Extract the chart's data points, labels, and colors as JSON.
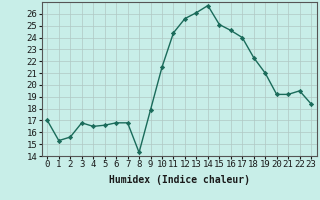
{
  "x": [
    0,
    1,
    2,
    3,
    4,
    5,
    6,
    7,
    8,
    9,
    10,
    11,
    12,
    13,
    14,
    15,
    16,
    17,
    18,
    19,
    20,
    21,
    22,
    23
  ],
  "y": [
    17.0,
    15.3,
    15.6,
    16.8,
    16.5,
    16.6,
    16.8,
    16.8,
    14.3,
    17.9,
    21.5,
    24.4,
    25.6,
    26.1,
    26.7,
    25.1,
    24.6,
    24.0,
    22.3,
    21.0,
    19.2,
    19.2,
    19.5,
    18.4
  ],
  "line_color": "#1a6b5a",
  "marker": "D",
  "markersize": 2.2,
  "linewidth": 1.0,
  "xlabel": "Humidex (Indice chaleur)",
  "xlim": [
    -0.5,
    23.5
  ],
  "ylim": [
    14,
    27
  ],
  "yticks": [
    14,
    15,
    16,
    17,
    18,
    19,
    20,
    21,
    22,
    23,
    24,
    25,
    26
  ],
  "xticks": [
    0,
    1,
    2,
    3,
    4,
    5,
    6,
    7,
    8,
    9,
    10,
    11,
    12,
    13,
    14,
    15,
    16,
    17,
    18,
    19,
    20,
    21,
    22,
    23
  ],
  "bg_color": "#c8eee8",
  "grid_color": "#b0c8c4",
  "font_color": "#1a1a1a",
  "xlabel_fontsize": 7,
  "tick_fontsize": 6.5
}
